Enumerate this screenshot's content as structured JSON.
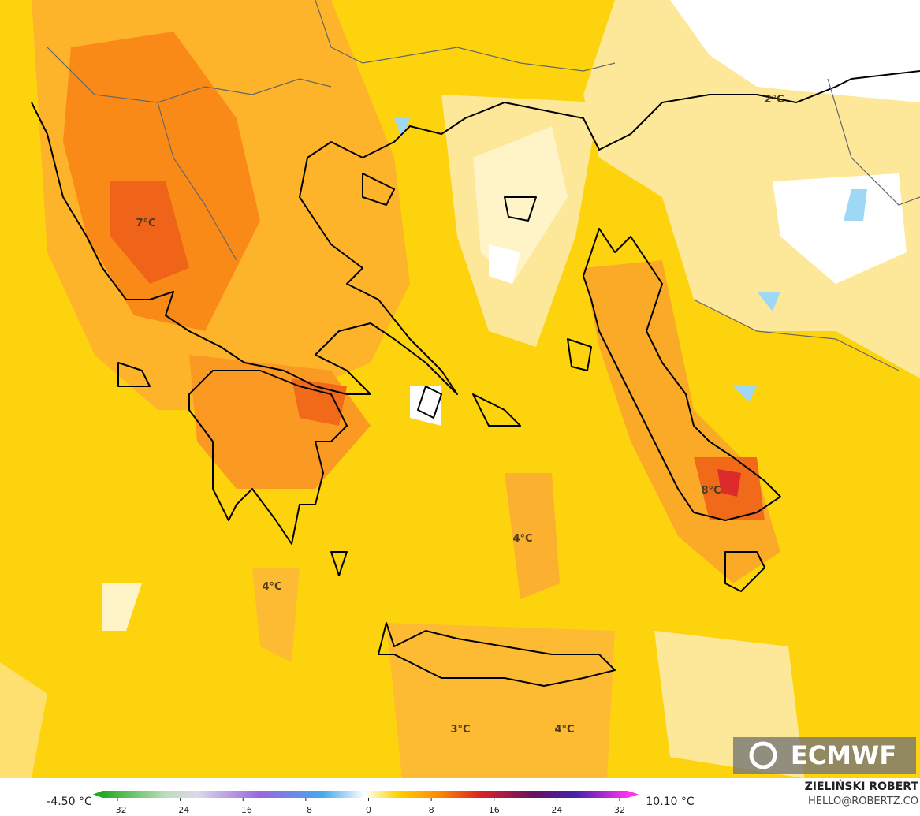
{
  "map": {
    "labels": [
      "7°C",
      "2°C",
      "8°C",
      "4°C",
      "4°C",
      "3°C",
      "4°C"
    ]
  },
  "colorbar": {
    "min_label": "-4.50 °C",
    "max_label": "10.10 °C",
    "ticks": [
      "−32",
      "−24",
      "−16",
      "−8",
      "0",
      "8",
      "16",
      "24",
      "32"
    ]
  },
  "credit": {
    "name": "ZIELIŃSKI ROBERT",
    "contact": "HELLO@ROBERTZ.CO"
  },
  "logo": "ECMWF"
}
